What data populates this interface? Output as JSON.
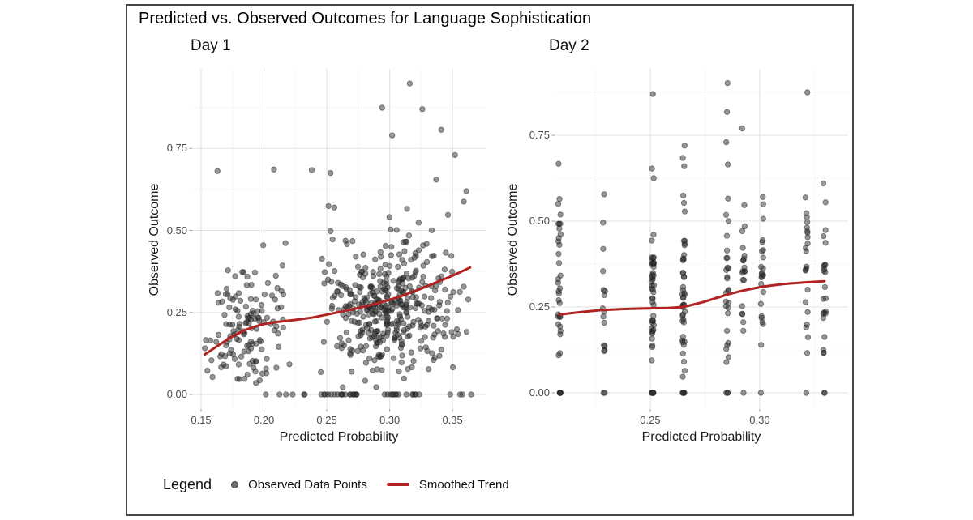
{
  "figure": {
    "title": "Predicted vs. Observed Outcomes for Language Sophistication",
    "legend": {
      "title": "Legend",
      "position": "bottom",
      "point_label": "Observed Data Points",
      "line_label": "Smoothed Trend"
    },
    "colors": {
      "point": "#303030",
      "point_edge": "#161616",
      "trend": "#B22222",
      "grid_major": "#E3E3E3",
      "grid_minor": "#EBEBEB",
      "axis_text": "#4d4d4d",
      "tick_mark": "#9a9a9a",
      "title_text": "#000000",
      "border": "#474747"
    }
  },
  "chart_data": [
    {
      "type": "scatter",
      "title": "Day 1",
      "xlabel": "Predicted Probability",
      "ylabel": "Observed Outcome",
      "grid": true,
      "x_domain": [
        0.1429,
        0.377
      ],
      "y_domain": [
        -0.0444,
        0.9926
      ],
      "x_tick_values": [
        0.15,
        0.2,
        0.25,
        0.3,
        0.35
      ],
      "x_tick_labels": [
        "0.15",
        "0.20",
        "0.25",
        "0.30",
        "0.35"
      ],
      "x_minor": [
        0.175,
        0.225,
        0.275,
        0.325
      ],
      "y_tick_values": [
        0.0,
        0.25,
        0.5,
        0.75
      ],
      "y_tick_labels": [
        "0.00",
        "0.25",
        "0.50",
        "0.75"
      ],
      "y_minor": [
        0.125,
        0.375,
        0.625,
        0.875
      ],
      "trend": {
        "name": "Smoothed Trend",
        "points": [
          [
            0.153,
            0.122
          ],
          [
            0.163,
            0.148
          ],
          [
            0.174,
            0.175
          ],
          [
            0.186,
            0.198
          ],
          [
            0.198,
            0.213
          ],
          [
            0.21,
            0.221
          ],
          [
            0.224,
            0.227
          ],
          [
            0.238,
            0.234
          ],
          [
            0.252,
            0.245
          ],
          [
            0.266,
            0.256
          ],
          [
            0.28,
            0.268
          ],
          [
            0.294,
            0.282
          ],
          [
            0.308,
            0.298
          ],
          [
            0.322,
            0.318
          ],
          [
            0.336,
            0.34
          ],
          [
            0.35,
            0.362
          ],
          [
            0.364,
            0.387
          ]
        ]
      },
      "scatter": {
        "name": "Observed Data Points",
        "seed": 11,
        "clusters": [
          {
            "count": 135,
            "x_mean": 0.186,
            "x_sd": 0.017,
            "x_min": 0.153,
            "x_max": 0.236,
            "y_mean": 0.21,
            "y_sd": 0.11,
            "y_min": 0.02,
            "y_max": 0.55
          },
          {
            "count": 400,
            "x_mean": 0.299,
            "x_sd": 0.0265,
            "x_min": 0.243,
            "x_max": 0.366,
            "y_mean": 0.27,
            "y_sd": 0.1,
            "y_min": 0.02,
            "y_max": 0.62
          }
        ],
        "zero_row": {
          "count": 42,
          "x_min": 0.152,
          "x_max": 0.365,
          "bias": 0.65,
          "y": 0.0
        },
        "outliers": [
          [
            0.163,
            0.681
          ],
          [
            0.208,
            0.686
          ],
          [
            0.238,
            0.684
          ],
          [
            0.253,
            0.675
          ],
          [
            0.256,
            0.57
          ],
          [
            0.294,
            0.874
          ],
          [
            0.316,
            0.948
          ],
          [
            0.326,
            0.87
          ],
          [
            0.341,
            0.807
          ],
          [
            0.302,
            0.79
          ],
          [
            0.352,
            0.73
          ],
          [
            0.337,
            0.655
          ],
          [
            0.361,
            0.62
          ],
          [
            0.359,
            0.588
          ]
        ]
      }
    },
    {
      "type": "scatter",
      "title": "Day 2",
      "xlabel": "Predicted Probability",
      "ylabel": "Observed Outcome",
      "grid": true,
      "x_domain": [
        0.2063,
        0.3404
      ],
      "y_domain": [
        -0.0472,
        0.9434
      ],
      "x_tick_values": [
        0.25,
        0.3
      ],
      "x_tick_labels": [
        "0.25",
        "0.30"
      ],
      "x_minor": [
        0.225,
        0.275,
        0.325
      ],
      "y_tick_values": [
        0.0,
        0.25,
        0.5,
        0.75
      ],
      "y_tick_labels": [
        "0.00",
        "0.25",
        "0.50",
        "0.75"
      ],
      "y_minor": [
        0.125,
        0.375,
        0.625,
        0.875
      ],
      "trend": {
        "name": "Smoothed Trend",
        "points": [
          [
            0.2085,
            0.228
          ],
          [
            0.218,
            0.235
          ],
          [
            0.228,
            0.241
          ],
          [
            0.238,
            0.244
          ],
          [
            0.248,
            0.246
          ],
          [
            0.258,
            0.247
          ],
          [
            0.2652,
            0.25
          ],
          [
            0.274,
            0.264
          ],
          [
            0.2852,
            0.286
          ],
          [
            0.2926,
            0.298
          ],
          [
            0.3011,
            0.309
          ],
          [
            0.311,
            0.317
          ],
          [
            0.3215,
            0.322
          ],
          [
            0.3296,
            0.325
          ]
        ]
      },
      "scatter": {
        "name": "Observed Data Points",
        "seed": 23,
        "strips": [
          {
            "x": 0.2085,
            "count": 30,
            "y_mean": 0.26,
            "y_sd": 0.15,
            "zeros": 5,
            "extras": [
              0.667,
              0.55
            ]
          },
          {
            "x": 0.2289,
            "count": 14,
            "y_mean": 0.29,
            "y_sd": 0.13,
            "zeros": 2,
            "extras": [
              0.578
            ]
          },
          {
            "x": 0.2511,
            "count": 44,
            "y_mean": 0.27,
            "y_sd": 0.13,
            "zeros": 6,
            "extras": [
              0.87,
              0.653,
              0.625
            ]
          },
          {
            "x": 0.2652,
            "count": 42,
            "y_mean": 0.29,
            "y_sd": 0.13,
            "zeros": 5,
            "extras": [
              0.72,
              0.684,
              0.66
            ]
          },
          {
            "x": 0.2852,
            "count": 26,
            "y_mean": 0.3,
            "y_sd": 0.12,
            "zeros": 3,
            "extras": [
              0.902,
              0.818,
              0.73,
              0.665
            ]
          },
          {
            "x": 0.2926,
            "count": 20,
            "y_mean": 0.33,
            "y_sd": 0.11,
            "zeros": 1,
            "extras": [
              0.77
            ]
          },
          {
            "x": 0.3011,
            "count": 22,
            "y_mean": 0.33,
            "y_sd": 0.11,
            "zeros": 1,
            "extras": [
              0.57
            ]
          },
          {
            "x": 0.3215,
            "count": 22,
            "y_mean": 0.33,
            "y_sd": 0.12,
            "zeros": 1,
            "extras": [
              0.875
            ]
          },
          {
            "x": 0.3296,
            "count": 22,
            "y_mean": 0.32,
            "y_sd": 0.12,
            "zeros": 2,
            "extras": [
              0.61
            ]
          }
        ],
        "y_min": 0.03,
        "y_max": 0.58
      }
    }
  ]
}
